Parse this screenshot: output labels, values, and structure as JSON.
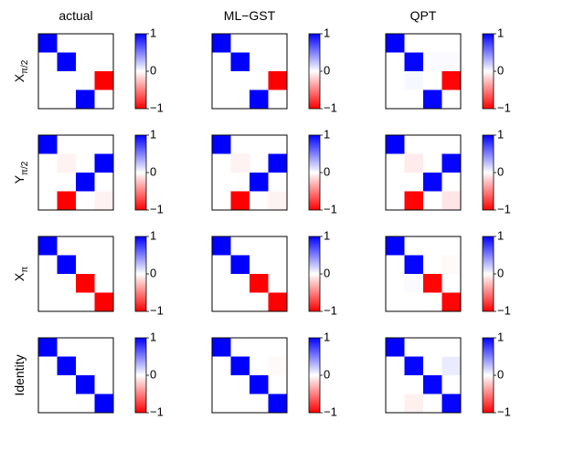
{
  "chart_data": {
    "type": "heatmap",
    "matrix_size": 4,
    "color_scale": {
      "min": -1,
      "max": 1,
      "ticks": [
        1,
        0,
        -1
      ],
      "tick_labels": [
        "1",
        "0",
        "−1"
      ],
      "negative_color": "#ff0000",
      "zero_color": "#ffffff",
      "positive_color": "#0000ff"
    },
    "column_titles": [
      "actual",
      "ML−GST",
      "QPT"
    ],
    "rows": [
      {
        "label": {
          "base": "X",
          "sub": "π/2"
        },
        "panels": [
          {
            "values": [
              [
                1,
                0,
                0,
                0
              ],
              [
                0,
                1,
                0,
                0
              ],
              [
                0,
                0,
                0,
                -1
              ],
              [
                0,
                0,
                1,
                0
              ]
            ]
          },
          {
            "values": [
              [
                1,
                0,
                0,
                0
              ],
              [
                0,
                1,
                0,
                0
              ],
              [
                0,
                0,
                0,
                -1
              ],
              [
                0,
                0,
                1,
                0
              ]
            ]
          },
          {
            "values": [
              [
                1,
                0,
                0,
                0
              ],
              [
                0,
                0.98,
                0.02,
                0.02
              ],
              [
                0,
                0.03,
                0,
                -0.98
              ],
              [
                0,
                0,
                0.98,
                0
              ]
            ]
          }
        ]
      },
      {
        "label": {
          "base": "Y",
          "sub": "π/2"
        },
        "panels": [
          {
            "values": [
              [
                1,
                0,
                0,
                0
              ],
              [
                0,
                -0.05,
                0,
                1
              ],
              [
                0,
                0,
                1,
                0
              ],
              [
                0,
                -1,
                0,
                -0.05
              ]
            ]
          },
          {
            "values": [
              [
                1,
                0,
                0,
                0
              ],
              [
                0,
                -0.05,
                0,
                1
              ],
              [
                0,
                0,
                1,
                0
              ],
              [
                0,
                -1,
                0,
                -0.05
              ]
            ]
          },
          {
            "values": [
              [
                1,
                0,
                0,
                0
              ],
              [
                0,
                -0.08,
                0,
                0.98
              ],
              [
                0,
                0,
                0.98,
                0
              ],
              [
                0,
                -0.98,
                0,
                -0.1
              ]
            ]
          }
        ]
      },
      {
        "label": {
          "base": "X",
          "sub": "π"
        },
        "panels": [
          {
            "values": [
              [
                1,
                0,
                0,
                0
              ],
              [
                0,
                1,
                0,
                0
              ],
              [
                0,
                0,
                -1,
                0
              ],
              [
                0,
                0,
                0,
                -1
              ]
            ]
          },
          {
            "values": [
              [
                1,
                0,
                0,
                0
              ],
              [
                0,
                1,
                0,
                0
              ],
              [
                0,
                0,
                -1,
                0
              ],
              [
                0,
                0,
                0,
                -1
              ]
            ]
          },
          {
            "values": [
              [
                1,
                0,
                0,
                0
              ],
              [
                0,
                0.98,
                0,
                -0.02
              ],
              [
                0,
                0.02,
                -0.98,
                0
              ],
              [
                0,
                0,
                0,
                -0.98
              ]
            ]
          }
        ]
      },
      {
        "label": {
          "base": "Identity",
          "sub": ""
        },
        "panels": [
          {
            "values": [
              [
                1,
                0,
                0,
                0
              ],
              [
                0,
                1,
                0,
                0
              ],
              [
                0,
                0,
                1,
                0
              ],
              [
                0,
                0,
                0,
                1
              ]
            ]
          },
          {
            "values": [
              [
                1,
                0,
                0,
                0
              ],
              [
                0,
                1,
                0,
                -0.02
              ],
              [
                0,
                0,
                1,
                0
              ],
              [
                0,
                0,
                0,
                1
              ]
            ]
          },
          {
            "values": [
              [
                1,
                0,
                0,
                0
              ],
              [
                0,
                0.98,
                0,
                0.08
              ],
              [
                0,
                0,
                0.98,
                0
              ],
              [
                0,
                -0.06,
                0,
                0.98
              ]
            ]
          }
        ]
      }
    ]
  }
}
